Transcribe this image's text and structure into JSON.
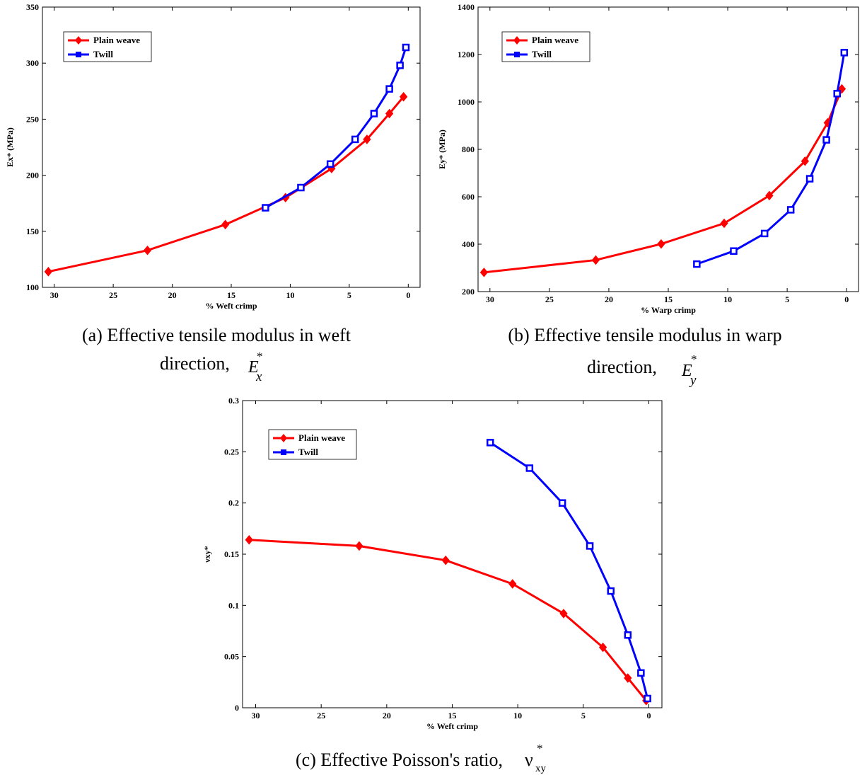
{
  "chart_data": [
    {
      "type": "line",
      "xlabel": "% Weft crimp",
      "ylabel": "Ex* (MPa)",
      "xlim": [
        31,
        -1
      ],
      "ylim": [
        100,
        350
      ],
      "xticks": [
        30,
        25,
        20,
        15,
        10,
        5,
        0
      ],
      "yticks": [
        100,
        150,
        200,
        250,
        300,
        350
      ],
      "legend": "top-left",
      "grid": false,
      "series": [
        {
          "name": "Plain weave",
          "color": "#ff0000",
          "marker": "diamond",
          "x": [
            30.5,
            22.1,
            15.5,
            10.4,
            6.5,
            3.5,
            1.6,
            0.4
          ],
          "y": [
            114,
            133,
            156,
            180,
            206,
            232,
            255,
            270
          ]
        },
        {
          "name": "Twill",
          "color": "#0000ff",
          "marker": "square",
          "x": [
            12.1,
            9.1,
            6.6,
            4.5,
            2.9,
            1.6,
            0.7,
            0.2
          ],
          "y": [
            171,
            189,
            210,
            232,
            255,
            277,
            298,
            314
          ]
        }
      ],
      "caption": {
        "text": "(a) Effective tensile modulus in weft",
        "line2": "direction,",
        "symbol": "E",
        "sup": "*",
        "sub": "x"
      }
    },
    {
      "type": "line",
      "xlabel": "% Warp crimp",
      "ylabel": "Ey* (MPa)",
      "xlim": [
        31,
        -1
      ],
      "ylim": [
        200,
        1400
      ],
      "xticks": [
        30,
        25,
        20,
        15,
        10,
        5,
        0
      ],
      "yticks": [
        200,
        400,
        600,
        800,
        1000,
        1200,
        1400
      ],
      "legend": "top-left",
      "grid": false,
      "series": [
        {
          "name": "Plain weave",
          "color": "#ff0000",
          "marker": "diamond",
          "x": [
            30.5,
            21.1,
            15.6,
            10.3,
            6.5,
            3.5,
            1.6,
            0.4
          ],
          "y": [
            281,
            333,
            401,
            488,
            605,
            750,
            912,
            1055
          ]
        },
        {
          "name": "Twill",
          "color": "#0000ff",
          "marker": "square",
          "x": [
            12.6,
            9.5,
            6.9,
            4.7,
            3.1,
            1.7,
            0.8,
            0.2
          ],
          "y": [
            316,
            371,
            445,
            545,
            676,
            840,
            1035,
            1208
          ]
        }
      ],
      "caption": {
        "text": "(b) Effective tensile modulus in warp",
        "line2": "direction,",
        "symbol": "E",
        "sup": "*",
        "sub": "y"
      }
    },
    {
      "type": "line",
      "xlabel": "% Weft crimp",
      "ylabel": "νxy*",
      "xlim": [
        31,
        -1
      ],
      "ylim": [
        0,
        0.3
      ],
      "xticks": [
        30,
        25,
        20,
        15,
        10,
        5,
        0
      ],
      "yticks": [
        0,
        0.05,
        0.1,
        0.15,
        0.2,
        0.25,
        0.3
      ],
      "legend": "top-left",
      "grid": false,
      "series": [
        {
          "name": "Plain weave",
          "color": "#ff0000",
          "marker": "diamond",
          "x": [
            30.5,
            22.1,
            15.5,
            10.4,
            6.5,
            3.5,
            1.6,
            0.2
          ],
          "y": [
            0.164,
            0.158,
            0.144,
            0.121,
            0.092,
            0.059,
            0.029,
            0.007
          ]
        },
        {
          "name": "Twill",
          "color": "#0000ff",
          "marker": "square",
          "x": [
            12.1,
            9.1,
            6.6,
            4.5,
            2.9,
            1.6,
            0.6,
            0.1
          ],
          "y": [
            0.259,
            0.234,
            0.2,
            0.158,
            0.114,
            0.071,
            0.034,
            0.009
          ]
        }
      ],
      "caption": {
        "text": "(c) Effective Poisson's ratio,",
        "symbol": "ν",
        "sup": "*",
        "sub": "xy"
      }
    }
  ]
}
